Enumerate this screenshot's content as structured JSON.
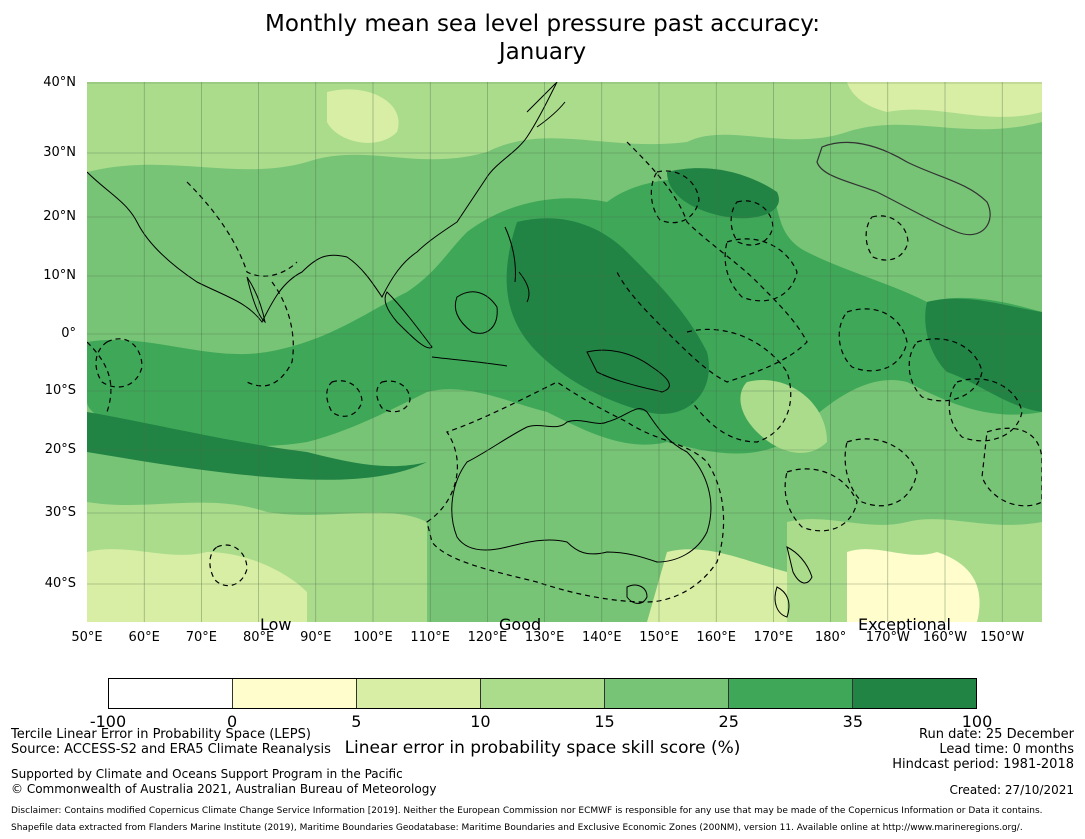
{
  "title": {
    "line1": "Monthly mean sea level pressure past accuracy:",
    "line2": "January"
  },
  "map": {
    "lat_labels": [
      "40°N",
      "30°N",
      "20°N",
      "10°N",
      "0°",
      "10°S",
      "20°S",
      "30°S",
      "40°S"
    ],
    "lon_labels": [
      "50°E",
      "60°E",
      "70°E",
      "80°E",
      "90°E",
      "100°E",
      "110°E",
      "120°E",
      "130°E",
      "140°E",
      "150°E",
      "160°E",
      "170°E",
      "180°",
      "170°W",
      "160°W",
      "150°W"
    ],
    "category_labels": [
      "Low",
      "Good",
      "Exceptional"
    ]
  },
  "colorbar": {
    "ticks": [
      "-100",
      "0",
      "5",
      "10",
      "15",
      "25",
      "35",
      "100"
    ],
    "colors": [
      "#ffffff",
      "#fffdcc",
      "#d8eea4",
      "#aadc8c",
      "#77c476",
      "#3ea858",
      "#228444"
    ],
    "label": "Linear error in probability space skill score (%)"
  },
  "info": {
    "left_line1": "Tercile Linear Error in Probability Space (LEPS)",
    "left_line2": "Source: ACCESS-S2 and ERA5 Climate Reanalysis",
    "support_line1": "Supported by Climate and Oceans Support Program in the Pacific",
    "support_line2": "© Commonwealth of Australia 2021, Australian Bureau of Meteorology",
    "run_date": "Run date: 25 December",
    "lead_time": "Lead time: 0 months",
    "hindcast": "Hindcast period: 1981-2018",
    "created": "Created: 27/10/2021",
    "disclaimer": "Disclaimer: Contains modified Copernicus Climate Change Service Information [2019]. Neither the European Commission nor ECMWF is responsible for any use that may be made of the Copernicus Information or Data it contains.",
    "shapefile": "Shapefile data extracted from Flanders Marine Institute (2019), Maritime Boundaries Geodatabase: Maritime Boundaries and Exclusive Economic Zones (200NM), version 11. Available online at http://www.marineregions.org/."
  }
}
